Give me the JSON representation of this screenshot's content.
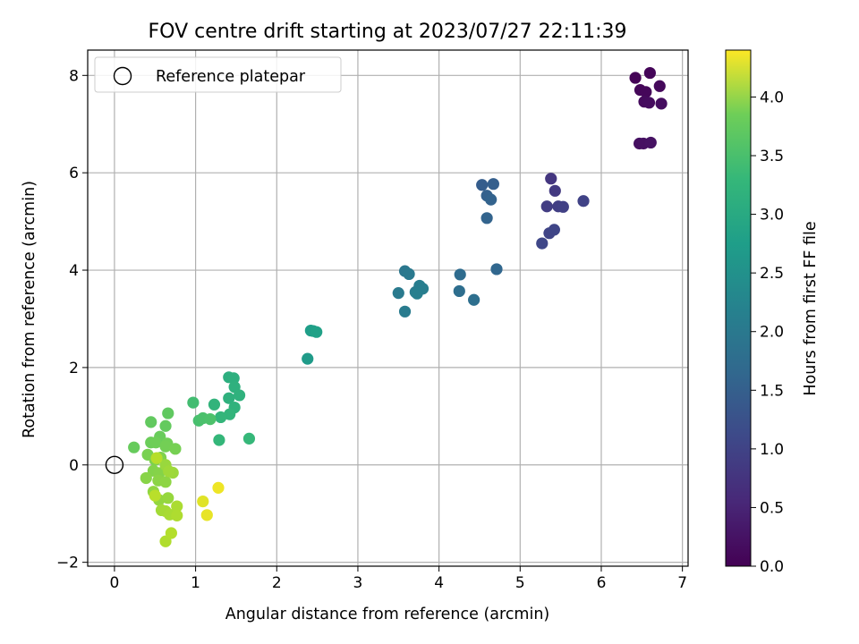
{
  "chart_data": {
    "type": "scatter",
    "title": "FOV centre drift starting at 2023/07/27 22:11:39",
    "xlabel": "Angular distance from reference (arcmin)",
    "ylabel": "Rotation from reference (arcmin)",
    "xlim": [
      -0.33,
      7.07
    ],
    "ylim": [
      -2.08,
      8.52
    ],
    "xticks": [
      0,
      1,
      2,
      3,
      4,
      5,
      6,
      7
    ],
    "yticks": [
      -2,
      0,
      2,
      4,
      6,
      8
    ],
    "grid": true,
    "legend": {
      "placement": "top-left",
      "entries": [
        "Reference platepar"
      ]
    },
    "reference_point": {
      "x": 0,
      "y": 0,
      "label": "Reference platepar"
    },
    "colorbar": {
      "label": "Hours from first FF file",
      "colormap": "viridis",
      "range": [
        0.0,
        4.4
      ],
      "ticks": [
        "0.0",
        "0.5",
        "1.0",
        "1.5",
        "2.0",
        "2.5",
        "3.0",
        "3.5",
        "4.0"
      ]
    },
    "points": [
      [
        6.42,
        7.95,
        0.03
      ],
      [
        6.6,
        8.05,
        0.05
      ],
      [
        6.48,
        7.7,
        0.07
      ],
      [
        6.55,
        7.66,
        0.08
      ],
      [
        6.72,
        7.78,
        0.1
      ],
      [
        6.53,
        7.46,
        0.12
      ],
      [
        6.59,
        7.44,
        0.14
      ],
      [
        6.74,
        7.42,
        0.15
      ],
      [
        6.47,
        6.6,
        0.17
      ],
      [
        6.52,
        6.6,
        0.19
      ],
      [
        6.61,
        6.62,
        0.21
      ],
      [
        5.38,
        5.88,
        0.7
      ],
      [
        5.43,
        5.63,
        0.75
      ],
      [
        5.33,
        5.31,
        0.8
      ],
      [
        5.47,
        5.31,
        0.82
      ],
      [
        5.53,
        5.3,
        0.85
      ],
      [
        5.78,
        5.42,
        0.88
      ],
      [
        5.36,
        4.76,
        0.9
      ],
      [
        5.42,
        4.83,
        0.92
      ],
      [
        5.27,
        4.55,
        0.95
      ],
      [
        4.53,
        5.75,
        1.3
      ],
      [
        4.67,
        5.77,
        1.33
      ],
      [
        4.59,
        5.53,
        1.36
      ],
      [
        4.64,
        5.45,
        1.38
      ],
      [
        4.59,
        5.07,
        1.4
      ],
      [
        4.71,
        4.02,
        1.45
      ],
      [
        4.26,
        3.91,
        1.55
      ],
      [
        4.25,
        3.57,
        1.58
      ],
      [
        4.43,
        3.39,
        1.6
      ],
      [
        3.58,
        3.98,
        1.75
      ],
      [
        3.63,
        3.92,
        1.78
      ],
      [
        3.5,
        3.53,
        1.8
      ],
      [
        3.58,
        3.15,
        1.82
      ],
      [
        3.71,
        3.55,
        1.84
      ],
      [
        3.76,
        3.68,
        1.86
      ],
      [
        3.8,
        3.62,
        1.88
      ],
      [
        3.73,
        3.52,
        1.9
      ],
      [
        2.38,
        2.18,
        2.4
      ],
      [
        2.42,
        2.76,
        2.45
      ],
      [
        2.45,
        2.75,
        2.47
      ],
      [
        2.49,
        2.73,
        2.5
      ],
      [
        1.41,
        1.8,
        2.75
      ],
      [
        1.47,
        1.78,
        2.77
      ],
      [
        1.48,
        1.6,
        2.79
      ],
      [
        1.41,
        1.37,
        2.8
      ],
      [
        1.54,
        1.43,
        2.82
      ],
      [
        1.48,
        1.18,
        2.84
      ],
      [
        1.23,
        1.24,
        2.86
      ],
      [
        1.42,
        1.04,
        2.88
      ],
      [
        1.31,
        0.98,
        2.9
      ],
      [
        1.29,
        0.51,
        2.92
      ],
      [
        1.66,
        0.54,
        2.94
      ],
      [
        0.97,
        1.28,
        3.05
      ],
      [
        1.04,
        0.91,
        3.1
      ],
      [
        1.09,
        0.96,
        3.12
      ],
      [
        1.18,
        0.94,
        3.14
      ],
      [
        0.66,
        1.06,
        3.3
      ],
      [
        0.45,
        0.88,
        3.32
      ],
      [
        0.63,
        0.8,
        3.34
      ],
      [
        0.24,
        0.36,
        3.36
      ],
      [
        0.56,
        0.58,
        3.38
      ],
      [
        0.45,
        0.46,
        3.4
      ],
      [
        0.51,
        0.46,
        3.42
      ],
      [
        0.65,
        0.44,
        3.44
      ],
      [
        0.63,
        0.38,
        3.46
      ],
      [
        0.75,
        0.33,
        3.48
      ],
      [
        0.41,
        0.21,
        3.5
      ],
      [
        0.5,
        0.1,
        3.52
      ],
      [
        0.57,
        0.15,
        3.54
      ],
      [
        0.48,
        -0.12,
        3.56
      ],
      [
        0.55,
        -0.17,
        3.58
      ],
      [
        0.39,
        -0.27,
        3.6
      ],
      [
        0.54,
        -0.32,
        3.62
      ],
      [
        0.63,
        -0.35,
        3.64
      ],
      [
        0.48,
        -0.55,
        3.66
      ],
      [
        0.55,
        -0.72,
        3.68
      ],
      [
        0.66,
        -0.68,
        3.7
      ],
      [
        0.63,
        0.0,
        3.72
      ],
      [
        0.72,
        -0.16,
        3.74
      ],
      [
        0.67,
        -0.13,
        3.76
      ],
      [
        0.58,
        -0.93,
        3.78
      ],
      [
        0.63,
        -0.95,
        3.8
      ],
      [
        0.68,
        -1.02,
        3.82
      ],
      [
        0.77,
        -0.85,
        3.84
      ],
      [
        0.77,
        -1.04,
        3.86
      ],
      [
        0.63,
        -1.57,
        3.88
      ],
      [
        0.7,
        -1.4,
        3.9
      ],
      [
        0.52,
        0.14,
        3.92
      ],
      [
        0.5,
        -0.63,
        3.94
      ],
      [
        1.09,
        -0.75,
        4.2
      ],
      [
        1.14,
        -1.03,
        4.25
      ],
      [
        1.28,
        -0.47,
        4.3
      ]
    ]
  }
}
